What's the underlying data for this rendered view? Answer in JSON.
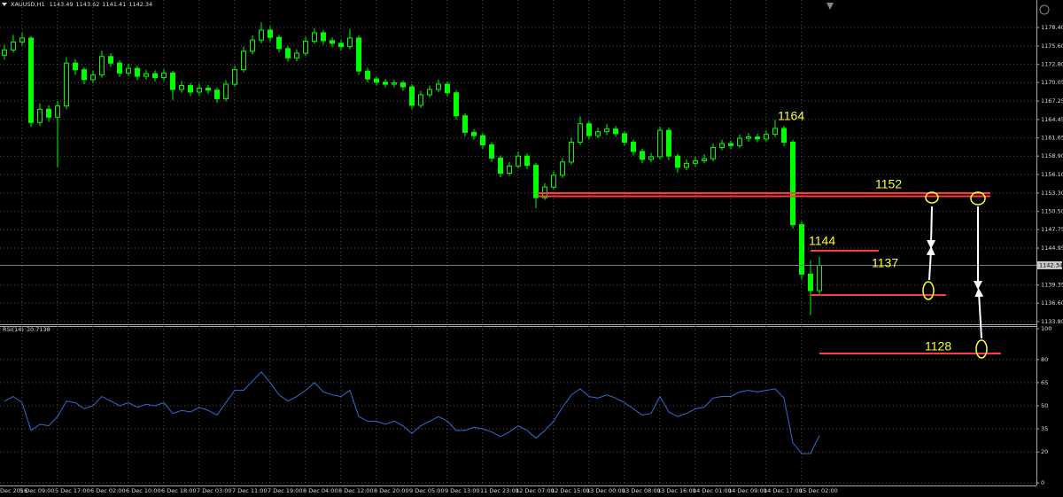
{
  "chart_data": [
    {
      "type": "candlestick",
      "title": "XAUUSD,H1",
      "header_values": [
        1143.49,
        1143.62,
        1141.41,
        1142.34
      ],
      "color": "#00ff00",
      "categories": [
        "Dec 2016",
        null,
        "5 Dec 09:00",
        null,
        null,
        null,
        "5 Dec 17:00",
        null,
        null,
        null,
        "6 Dec 02:00",
        null,
        null,
        null,
        "6 Dec 10:00",
        null,
        null,
        null,
        "6 Dec 18:00",
        null,
        null,
        null,
        "7 Dec 03:00",
        null,
        null,
        null,
        "7 Dec 11:00",
        null,
        null,
        null,
        "7 Dec 19:00",
        null,
        null,
        null,
        "8 Dec 04:00",
        null,
        null,
        null,
        "8 Dec 12:00",
        null,
        null,
        null,
        "8 Dec 20:00",
        null,
        null,
        null,
        "9 Dec 05:00",
        null,
        null,
        null,
        "9 Dec 13:00",
        null,
        null,
        null,
        "11 Dec 23:00",
        null,
        null,
        null,
        "12 Dec 07:00",
        null,
        null,
        null,
        "12 Dec 15:00",
        null,
        null,
        null,
        "13 Dec 00:00",
        null,
        null,
        null,
        "13 Dec 08:00",
        null,
        null,
        null,
        "13 Dec 16:00",
        null,
        null,
        null,
        "14 Dec 01:00",
        null,
        null,
        null,
        "14 Dec 09:00",
        null,
        null,
        null,
        "14 Dec 17:00",
        null,
        null,
        null,
        "15 Dec 02:00",
        null,
        null
      ],
      "open": [
        1174.2,
        1175.0,
        1176.2,
        1176.8,
        1164.0,
        1166.0,
        1164.8,
        1166.5,
        1173.0,
        1172.0,
        1170.5,
        1171.2,
        1174.0,
        1173.0,
        1171.5,
        1172.2,
        1171.0,
        1171.4,
        1170.8,
        1171.5,
        1169.0,
        1169.6,
        1168.6,
        1169.2,
        1168.9,
        1167.6,
        1169.8,
        1172.0,
        1174.8,
        1176.5,
        1178.0,
        1176.9,
        1175.2,
        1173.8,
        1174.5,
        1176.3,
        1177.6,
        1176.4,
        1176.0,
        1175.5,
        1176.8,
        1171.8,
        1170.6,
        1170.1,
        1169.8,
        1170.0,
        1169.4,
        1166.6,
        1168.2,
        1169.0,
        1169.8,
        1168.5,
        1165.0,
        1162.5,
        1162.0,
        1160.6,
        1158.6,
        1156.3,
        1157.4,
        1158.9,
        1157.5,
        1152.6,
        1154.2,
        1156.0,
        1158.0,
        1161.0,
        1163.8,
        1162.0,
        1162.6,
        1163.0,
        1162.3,
        1161.0,
        1159.6,
        1158.4,
        1158.8,
        1162.8,
        1158.9,
        1157.2,
        1157.8,
        1158.2,
        1158.5,
        1160.2,
        1160.8,
        1160.5,
        1161.6,
        1161.8,
        1161.5,
        1162.2,
        1163.1,
        1161.0,
        1148.5,
        1141.0,
        1138.5
      ],
      "high": [
        1175.8,
        1177.3,
        1177.6,
        1177.1,
        1166.9,
        1166.6,
        1167.2,
        1173.9,
        1173.6,
        1172.4,
        1171.9,
        1174.9,
        1174.5,
        1173.4,
        1172.9,
        1172.6,
        1172.0,
        1171.9,
        1172.1,
        1171.8,
        1170.3,
        1170.0,
        1169.9,
        1169.7,
        1169.3,
        1170.4,
        1172.6,
        1175.5,
        1177.2,
        1179.2,
        1178.6,
        1177.3,
        1175.6,
        1175.1,
        1177.0,
        1178.3,
        1178.0,
        1176.9,
        1176.5,
        1178.2,
        1177.2,
        1172.3,
        1171.0,
        1170.6,
        1170.5,
        1170.4,
        1169.8,
        1168.8,
        1169.6,
        1170.5,
        1170.2,
        1168.9,
        1165.4,
        1163.0,
        1162.4,
        1161.0,
        1159.0,
        1158.0,
        1159.6,
        1159.3,
        1157.9,
        1154.8,
        1156.6,
        1158.6,
        1161.7,
        1164.9,
        1164.2,
        1163.2,
        1163.8,
        1163.5,
        1162.7,
        1161.4,
        1160.0,
        1159.4,
        1163.4,
        1163.2,
        1159.3,
        1158.4,
        1158.8,
        1159.2,
        1160.8,
        1161.4,
        1161.3,
        1162.2,
        1162.4,
        1162.3,
        1162.8,
        1164.4,
        1163.5,
        1161.4,
        1149.0,
        1143.1,
        1143.62
      ],
      "low": [
        1173.5,
        1174.6,
        1175.7,
        1163.3,
        1163.5,
        1164.1,
        1157.2,
        1166.0,
        1171.2,
        1169.8,
        1170.0,
        1170.8,
        1172.4,
        1170.9,
        1171.0,
        1170.4,
        1170.5,
        1170.2,
        1170.3,
        1167.4,
        1168.5,
        1168.0,
        1168.1,
        1168.3,
        1167.0,
        1167.2,
        1169.4,
        1171.6,
        1174.3,
        1176.0,
        1176.2,
        1174.6,
        1173.2,
        1173.3,
        1174.1,
        1175.9,
        1175.8,
        1175.4,
        1174.9,
        1175.1,
        1171.2,
        1170.1,
        1169.6,
        1169.3,
        1169.3,
        1168.8,
        1166.0,
        1166.2,
        1167.8,
        1168.6,
        1167.9,
        1164.4,
        1161.9,
        1161.4,
        1160.0,
        1158.0,
        1155.7,
        1155.9,
        1157.0,
        1156.9,
        1151.0,
        1152.2,
        1153.8,
        1155.6,
        1157.6,
        1160.6,
        1161.4,
        1161.6,
        1162.1,
        1161.8,
        1160.5,
        1159.0,
        1157.8,
        1158.0,
        1158.4,
        1158.3,
        1156.4,
        1156.8,
        1157.3,
        1157.8,
        1158.1,
        1159.8,
        1160.0,
        1160.1,
        1161.1,
        1161.0,
        1161.1,
        1161.8,
        1160.4,
        1147.9,
        1140.2,
        1134.8,
        1138.0
      ],
      "close": [
        1175.0,
        1176.2,
        1176.8,
        1164.0,
        1166.0,
        1164.8,
        1166.5,
        1173.0,
        1172.0,
        1170.5,
        1171.2,
        1174.0,
        1173.0,
        1171.5,
        1172.2,
        1171.0,
        1171.4,
        1170.8,
        1171.5,
        1169.0,
        1169.6,
        1168.6,
        1169.2,
        1168.9,
        1167.6,
        1169.8,
        1172.0,
        1174.8,
        1176.5,
        1178.0,
        1176.9,
        1175.2,
        1173.8,
        1174.5,
        1176.3,
        1177.6,
        1176.4,
        1176.0,
        1175.5,
        1176.8,
        1171.8,
        1170.6,
        1170.1,
        1169.8,
        1170.0,
        1169.4,
        1166.6,
        1168.2,
        1169.0,
        1169.8,
        1168.5,
        1165.0,
        1162.5,
        1162.0,
        1160.6,
        1158.6,
        1156.3,
        1157.4,
        1158.9,
        1157.5,
        1152.6,
        1154.2,
        1156.0,
        1158.0,
        1161.0,
        1163.8,
        1162.0,
        1162.6,
        1163.0,
        1162.3,
        1161.0,
        1159.6,
        1158.4,
        1158.8,
        1162.8,
        1158.9,
        1157.2,
        1157.8,
        1158.2,
        1158.5,
        1160.2,
        1160.8,
        1160.5,
        1161.6,
        1161.8,
        1161.5,
        1162.2,
        1163.1,
        1161.0,
        1148.5,
        1141.0,
        1138.5,
        1142.34
      ],
      "ylim": [
        1133.4,
        1182.57
      ],
      "yticks": [
        {
          "value": 1178.4,
          "label": "1178.40"
        },
        {
          "value": 1175.6,
          "label": "1175.60"
        },
        {
          "value": 1172.8,
          "label": "1172.80"
        },
        1170.05,
        1167.25,
        1164.45,
        1161.65,
        {
          "value": 1158.9,
          "label": "1158.90"
        },
        {
          "value": 1156.1,
          "label": "1156.10"
        },
        {
          "value": 1153.3,
          "label": "1153.30"
        },
        {
          "value": 1150.5,
          "label": "1150.50"
        },
        1147.75,
        1144.95,
        1139.35,
        {
          "value": 1136.6,
          "label": "1136.60"
        },
        {
          "value": 1133.8,
          "label": "1133.80"
        }
      ],
      "grid": true,
      "annotations": [
        "1164",
        "1152",
        "1144",
        "1137",
        "1128"
      ]
    },
    {
      "type": "line",
      "title": "RSI(14)",
      "last_value": 30.7138,
      "color": "#2f6fd0",
      "values": [
        53,
        56,
        52,
        34,
        38,
        37,
        43,
        53,
        52,
        48,
        50,
        56,
        53,
        50,
        52,
        49,
        51,
        50,
        52,
        45,
        47,
        46,
        49,
        47,
        44,
        52,
        60,
        60,
        66,
        72,
        65,
        57,
        53,
        56,
        60,
        65,
        59,
        57,
        56,
        60,
        43,
        40,
        40,
        38,
        40,
        37,
        32,
        37,
        40,
        43,
        40,
        34,
        34,
        36,
        35,
        33,
        30,
        33,
        37,
        34,
        29,
        34,
        40,
        49,
        57,
        61,
        56,
        55,
        57,
        55,
        52,
        48,
        44,
        45,
        56,
        46,
        43,
        45,
        48,
        49,
        55,
        56,
        56,
        59,
        60,
        59,
        60,
        61,
        55,
        26,
        19,
        19,
        30.7138
      ],
      "ylim": [
        0,
        100
      ],
      "yticks": [
        100,
        80,
        65,
        50,
        35,
        20,
        0
      ],
      "grid": true
    }
  ]
}
